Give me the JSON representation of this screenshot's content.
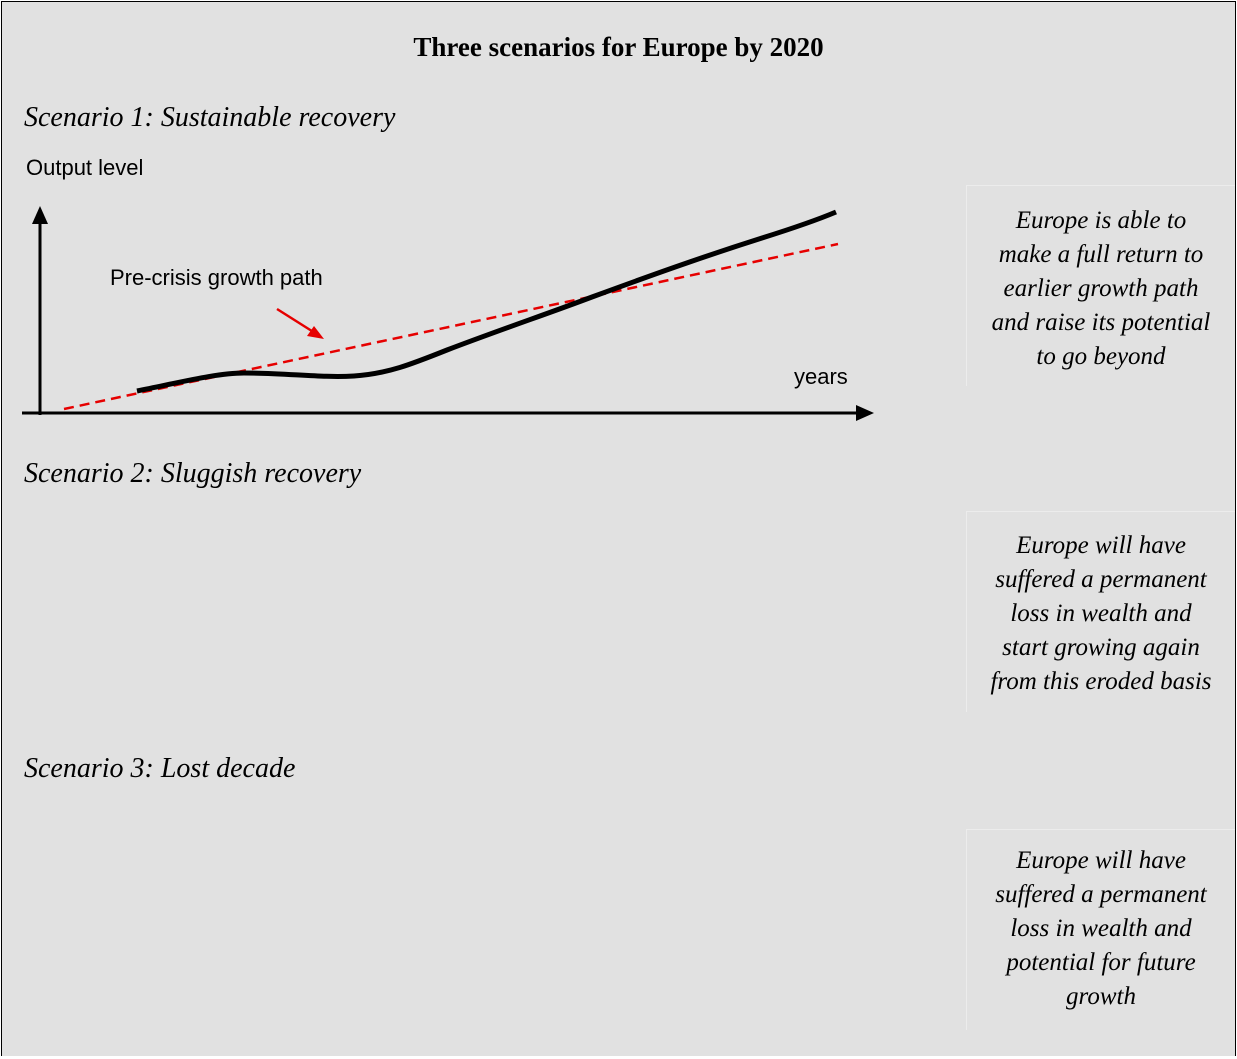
{
  "title": "Three scenarios for Europe by 2020",
  "scenarios": [
    {
      "label": "Scenario 1: Sustainable recovery",
      "description": [
        "Europe is able to",
        "make a full return to",
        "earlier growth path",
        "and raise its potential",
        "to go beyond"
      ]
    },
    {
      "label": "Scenario 2: Sluggish recovery",
      "description": [
        "Europe will have",
        "suffered a permanent",
        "loss in wealth and",
        "start growing again",
        "from this eroded basis"
      ]
    },
    {
      "label": "Scenario 3: Lost decade",
      "description": [
        "Europe will have",
        "suffered a permanent",
        "loss in wealth and",
        "potential for future",
        "growth"
      ]
    }
  ],
  "chart": {
    "ylabel": "Output level",
    "xlabel": "years",
    "annotation": "Pre-crisis growth path",
    "colors": {
      "actual": "#000000",
      "trend": "#e60000",
      "axis": "#000000"
    }
  }
}
